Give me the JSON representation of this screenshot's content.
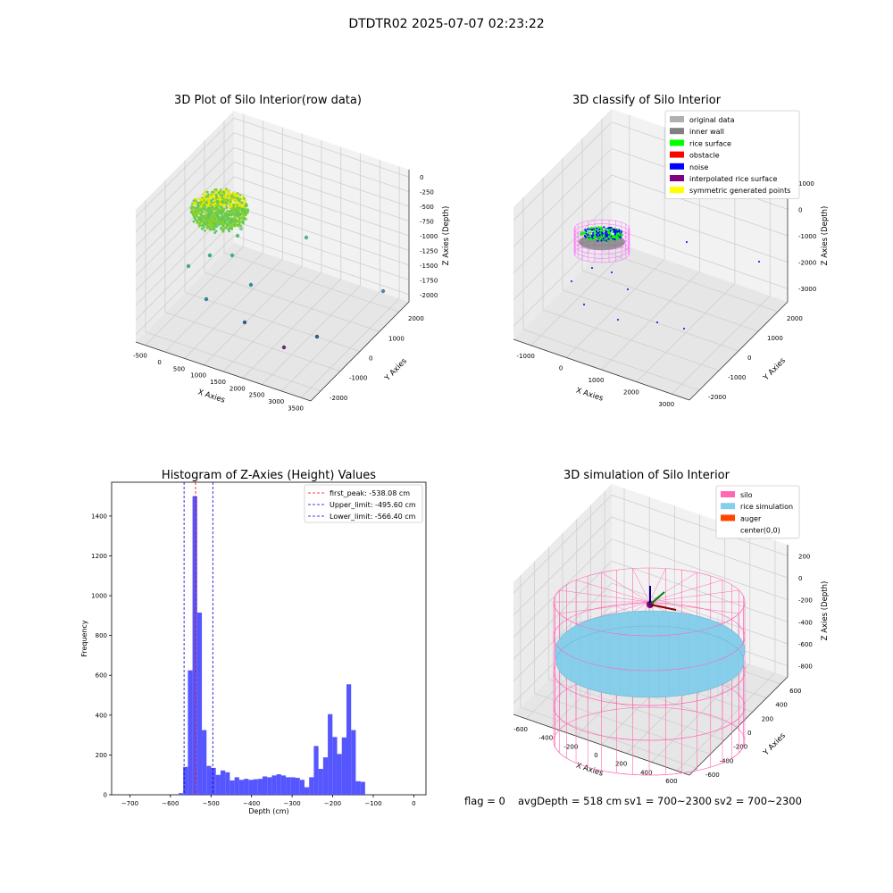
{
  "figure_title": "DTDTR02 2025-07-07 02:23:22",
  "footer": {
    "flag": "flag = 0",
    "avg_depth": "avgDepth = 518 cm",
    "sv1": "sv1 = 700~2300",
    "sv2": "sv2 = 700~2300"
  },
  "colors": {
    "bar": "#4d4dff",
    "peak_line": "#ff0000",
    "limit_line": "#0000cc",
    "silo": "#ff69b4",
    "rice": "#87ceeb",
    "auger": "#ff4500",
    "inner_wall": "#808080",
    "rice_surface": "#00ff00",
    "noise": "#0000ff",
    "interpolated": "#800080",
    "symmetric": "#ffff00",
    "original": "#b0b0b0"
  },
  "chart_data": [
    {
      "type": "scatter",
      "title": "3D Plot of Silo Interior(row data)",
      "xlabel": "X Axies",
      "ylabel": "Y Axies",
      "zlabel": "Z Axies (Depth)",
      "x_ticks": [
        "-500",
        "0",
        "500",
        "1000",
        "1500",
        "2000",
        "2500",
        "3000",
        "3500"
      ],
      "y_ticks": [
        "-2000",
        "-1000",
        "0",
        "1000",
        "2000"
      ],
      "z_ticks": [
        "0",
        "-250",
        "-500",
        "-750",
        "-1000",
        "-1250",
        "-1500",
        "-1750",
        "-2000"
      ],
      "grid": true
    },
    {
      "type": "scatter",
      "title": "3D classify of Silo Interior",
      "xlabel": "X Axies",
      "ylabel": "Y Axies",
      "zlabel": "Z Axies (Depth)",
      "x_ticks": [
        "-1000",
        "0",
        "1000",
        "2000",
        "3000"
      ],
      "y_ticks": [
        "-2000",
        "-1000",
        "0",
        "1000",
        "2000"
      ],
      "z_ticks": [
        "1000",
        "0",
        "-1000",
        "-2000",
        "-3000"
      ],
      "legend": [
        "original data",
        "inner wall",
        "rice surface",
        "obstacle",
        "noise",
        "interpolated rice surface",
        "symmetric generated points"
      ],
      "legend_position": "top-right",
      "grid": true
    },
    {
      "type": "bar",
      "title": "Histogram of Z-Axies (Height) Values",
      "xlabel": "Depth (cm)",
      "ylabel": "Frequency",
      "xlim": [
        -745,
        30
      ],
      "ylim": [
        0,
        1570
      ],
      "x_ticks": [
        -700,
        -600,
        -500,
        -400,
        -300,
        -200,
        -100,
        0
      ],
      "y_ticks": [
        0,
        200,
        400,
        600,
        800,
        1000,
        1200,
        1400
      ],
      "bin_start": -580,
      "bin_width": 11.5,
      "values": [
        8,
        140,
        625,
        1500,
        915,
        325,
        145,
        135,
        100,
        122,
        113,
        72,
        88,
        75,
        80,
        75,
        78,
        80,
        92,
        88,
        97,
        103,
        97,
        88,
        88,
        85,
        75,
        38,
        88,
        245,
        130,
        188,
        405,
        290,
        205,
        288,
        555,
        325,
        68,
        65
      ],
      "lines": [
        {
          "label": "first_peak: -538.08 cm",
          "x": -538.08,
          "style": "peak"
        },
        {
          "label": "Upper_limit: -495.60 cm",
          "x": -495.6,
          "style": "limit"
        },
        {
          "label": "Lower_limit: -566.40 cm",
          "x": -566.4,
          "style": "limit"
        }
      ],
      "legend_position": "top-right",
      "grid": false
    },
    {
      "type": "scatter",
      "title": "3D simulation of Silo Interior",
      "xlabel": "X Axies",
      "ylabel": "Y Axies",
      "zlabel": "Z Axies (Depth)",
      "x_ticks": [
        "-600",
        "-400",
        "-200",
        "0",
        "200",
        "400",
        "600"
      ],
      "y_ticks": [
        "-600",
        "-400",
        "-200",
        "0",
        "200",
        "400",
        "600"
      ],
      "z_ticks": [
        "200",
        "0",
        "-200",
        "-400",
        "-600",
        "-800"
      ],
      "legend": [
        "silo",
        "rice simulation",
        "auger",
        "center(0,0)"
      ],
      "legend_position": "top-right",
      "grid": true
    }
  ]
}
